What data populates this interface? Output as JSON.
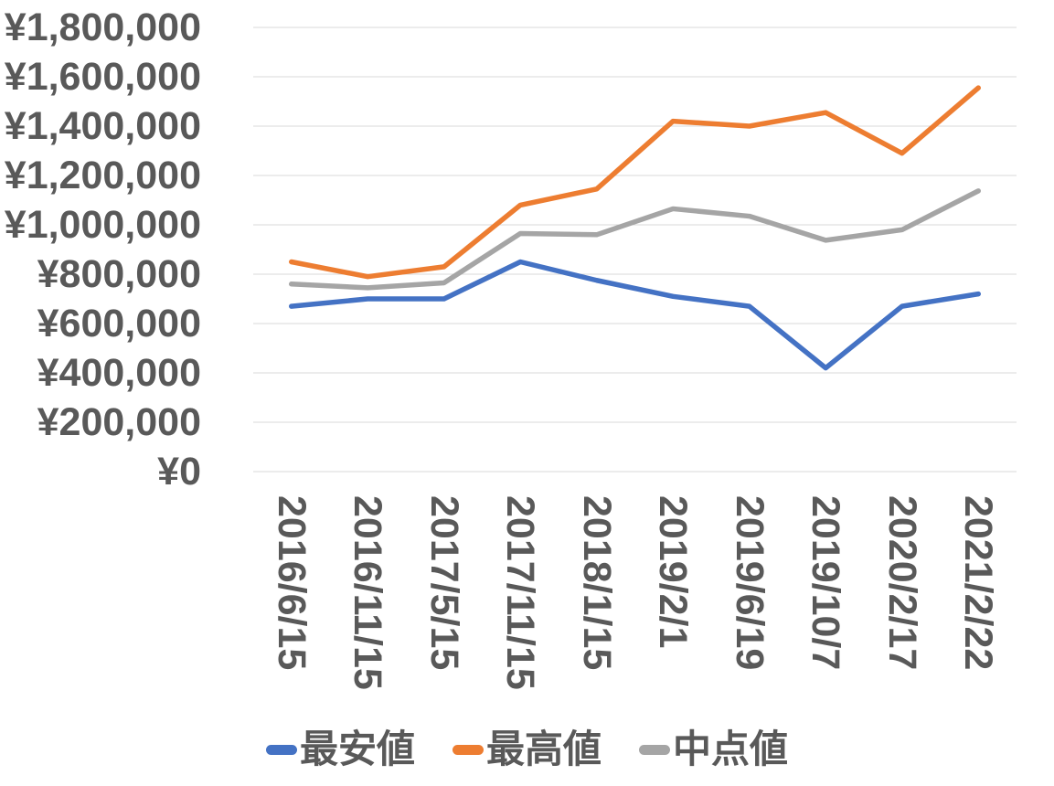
{
  "chart_data": {
    "type": "line",
    "title": "",
    "categories": [
      "2016/6/15",
      "2016/11/15",
      "2017/5/15",
      "2017/11/15",
      "2018/1/15",
      "2019/2/1",
      "2019/6/19",
      "2019/10/7",
      "2020/2/17",
      "2021/2/22"
    ],
    "series": [
      {
        "key": "lowest",
        "name": "最安値",
        "color": "#4472C4",
        "values": [
          670000,
          700000,
          700000,
          850000,
          775000,
          710000,
          670000,
          420000,
          670000,
          720000
        ]
      },
      {
        "key": "highest",
        "name": "最高値",
        "color": "#ED7D31",
        "values": [
          850000,
          790000,
          830000,
          1080000,
          1145000,
          1420000,
          1400000,
          1455000,
          1290000,
          1555000
        ]
      },
      {
        "key": "midpoint",
        "name": "中点値",
        "color": "#A5A5A5",
        "values": [
          760000,
          745000,
          765000,
          965000,
          960000,
          1065000,
          1035000,
          937500,
          980000,
          1137500
        ]
      }
    ],
    "y_axis": {
      "min": 0,
      "max": 1800000,
      "step": 200000,
      "tick_labels": [
        "¥0",
        "¥200,000",
        "¥400,000",
        "¥600,000",
        "¥800,000",
        "¥1,000,000",
        "¥1,200,000",
        "¥1,400,000",
        "¥1,600,000",
        "¥1,800,000"
      ],
      "currency_symbol": "¥"
    },
    "x_axis": {
      "label_rotation_deg": 90
    },
    "legend_position": "bottom",
    "grid": true
  },
  "colors": {
    "gridline": "#D9D9D9",
    "label_text": "#595959",
    "background": "#FFFFFF"
  }
}
